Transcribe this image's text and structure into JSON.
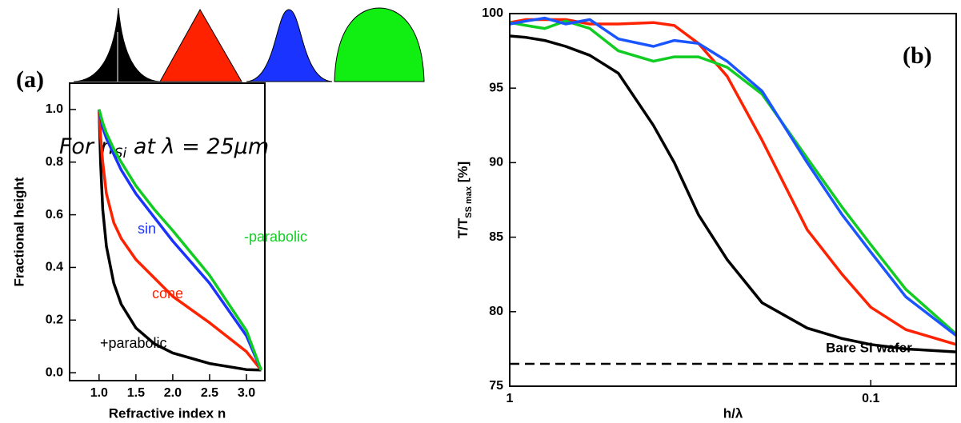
{
  "chart_data": [
    {
      "type": "line",
      "panel_label": "(a)",
      "note": [
        "For n",
        "Si",
        " at λ = 25μm"
      ],
      "xlabel": "Refractive index n",
      "ylabel": "Fractional height",
      "xlim": [
        0.6,
        3.25
      ],
      "ylim": [
        -0.03,
        1.1
      ],
      "xticks": [
        {
          "value": 1,
          "label": "1.0"
        },
        1.5,
        {
          "value": 2,
          "label": "2.0"
        },
        2.5,
        {
          "value": 3,
          "label": "3.0"
        }
      ],
      "yticks": [
        {
          "value": 0,
          "label": "0.0"
        },
        0.2,
        0.4,
        0.6,
        0.8,
        {
          "value": 1,
          "label": "1.0"
        }
      ],
      "x": [
        1,
        1.02,
        1.05,
        1.1,
        1.2,
        1.3,
        1.5,
        1.75,
        2.0,
        2.5,
        3.0,
        3.2
      ],
      "series": [
        {
          "name": "+parabolic",
          "color": "#000000",
          "values": [
            1,
            0.8,
            0.62,
            0.48,
            0.34,
            0.26,
            0.17,
            0.11,
            0.075,
            0.035,
            0.012,
            0.01
          ]
        },
        {
          "name": "cone",
          "color": "#ff2200",
          "values": [
            1,
            0.9,
            0.8,
            0.68,
            0.57,
            0.51,
            0.43,
            0.36,
            0.29,
            0.19,
            0.08,
            0.01
          ]
        },
        {
          "name": "sin",
          "color": "#1a33ff",
          "values": [
            1,
            0.97,
            0.93,
            0.89,
            0.83,
            0.77,
            0.68,
            0.59,
            0.5,
            0.34,
            0.14,
            0.01
          ]
        },
        {
          "name": "-parabolic",
          "color": "#11cc22",
          "values": [
            1,
            0.98,
            0.95,
            0.91,
            0.85,
            0.8,
            0.71,
            0.62,
            0.54,
            0.37,
            0.16,
            0.01
          ]
        }
      ]
    },
    {
      "type": "line",
      "panel_label": "(b)",
      "xscale": "log",
      "xlabel": "h/λ",
      "ylabel": [
        "T/T",
        "SS max",
        " [%]"
      ],
      "xlim": [
        1,
        0.058
      ],
      "ylim": [
        75,
        100
      ],
      "xticks": [
        1,
        0.1
      ],
      "yticks": [
        75,
        80,
        85,
        90,
        95,
        100
      ],
      "reference_line": {
        "label": "Bare Si wafer",
        "value": 76.5
      },
      "x": [
        1,
        0.9,
        0.8,
        0.7,
        0.6,
        0.5,
        0.4,
        0.35,
        0.3,
        0.25,
        0.2,
        0.15,
        0.12,
        0.1,
        0.08,
        0.058
      ],
      "series": [
        {
          "color": "#000000",
          "values": [
            98.5,
            98.4,
            98.2,
            97.8,
            97.2,
            96.0,
            92.5,
            90.0,
            86.5,
            83.5,
            80.6,
            78.9,
            78.2,
            77.8,
            77.5,
            77.3
          ]
        },
        {
          "color": "#ff2200",
          "values": [
            99.4,
            99.6,
            99.6,
            99.6,
            99.3,
            99.3,
            99.4,
            99.2,
            98.0,
            95.8,
            91.5,
            85.5,
            82.5,
            80.3,
            78.8,
            77.8
          ]
        },
        {
          "color": "#11cc22",
          "values": [
            99.4,
            99.2,
            99.0,
            99.5,
            99.0,
            97.5,
            96.8,
            97.1,
            97.1,
            96.4,
            94.6,
            90.3,
            87.0,
            84.5,
            81.5,
            78.5
          ]
        },
        {
          "color": "#1a55ff",
          "values": [
            99.3,
            99.5,
            99.7,
            99.3,
            99.6,
            98.3,
            97.8,
            98.2,
            98.0,
            96.8,
            94.8,
            90.0,
            86.5,
            84.0,
            81.0,
            78.4
          ]
        }
      ]
    }
  ]
}
